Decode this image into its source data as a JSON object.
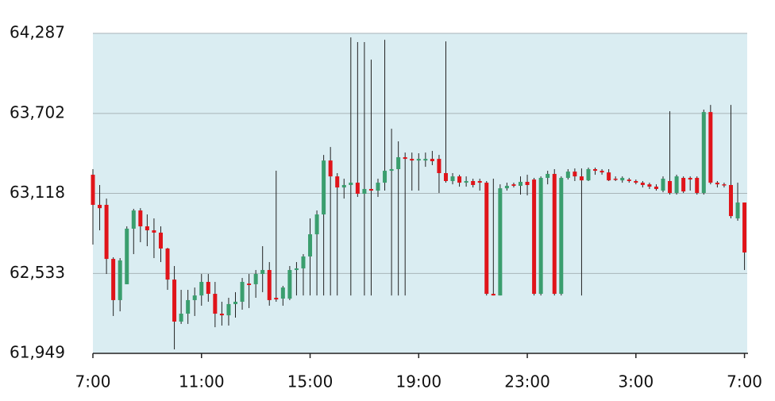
{
  "chart_data": {
    "type": "candlestick",
    "x": [
      0,
      0.25,
      0.5,
      0.75,
      1,
      1.25,
      1.5,
      1.75,
      2,
      2.25,
      2.5,
      2.75,
      3,
      3.25,
      3.5,
      3.75,
      4,
      4.25,
      4.5,
      4.75,
      5,
      5.25,
      5.5,
      5.75,
      6,
      6.25,
      6.5,
      6.75,
      7,
      7.25,
      7.5,
      7.75,
      8,
      8.25,
      8.5,
      8.75,
      9,
      9.25,
      9.5,
      9.75,
      10,
      10.25,
      10.5,
      10.75,
      11,
      11.25,
      11.5,
      11.75,
      12,
      12.25,
      12.5,
      12.75,
      13,
      13.25,
      13.5,
      13.75,
      14,
      14.25,
      14.5,
      14.75,
      15,
      15.25,
      15.5,
      15.75,
      16,
      16.25,
      16.5,
      16.75,
      17,
      17.25,
      17.5,
      17.75,
      18,
      18.25,
      18.5,
      18.75,
      19,
      19.25,
      19.5,
      19.75,
      20,
      20.25,
      20.5,
      20.75,
      21,
      21.25,
      21.5,
      21.75,
      22,
      22.25,
      22.5,
      22.75,
      23,
      23.25,
      23.5,
      23.75,
      24
    ],
    "open": [
      63254,
      63034,
      63034,
      62639,
      62338,
      62454,
      62860,
      62993,
      62877,
      62848,
      62831,
      62715,
      62488,
      62181,
      62239,
      62338,
      62372,
      62471,
      62384,
      62239,
      62227,
      62309,
      62326,
      62459,
      62454,
      62529,
      62558,
      62355,
      62349,
      62349,
      62558,
      62570,
      62657,
      62819,
      62964,
      63358,
      63242,
      63161,
      63179,
      63196,
      63115,
      63150,
      63138,
      63196,
      63283,
      63295,
      63382,
      63370,
      63358,
      63358,
      63370,
      63370,
      63266,
      63208,
      63242,
      63196,
      63208,
      63208,
      63196,
      62384,
      62372,
      63155,
      63184,
      63173,
      63202,
      63219,
      62384,
      63231,
      63260,
      62384,
      63231,
      63277,
      63242,
      63213,
      63295,
      63283,
      63271,
      63225,
      63213,
      63219,
      63208,
      63196,
      63184,
      63167,
      63138,
      63208,
      63121,
      63231,
      63231,
      63231,
      63121,
      63712,
      63196,
      63184,
      63179,
      62935,
      63051
    ],
    "high": [
      63295,
      63179,
      63080,
      62651,
      62645,
      62877,
      63005,
      63010,
      62964,
      62935,
      62877,
      62720,
      62587,
      62413,
      62413,
      62430,
      62529,
      62529,
      62471,
      62326,
      62355,
      62396,
      62500,
      62529,
      62558,
      62732,
      62616,
      63283,
      62442,
      62587,
      62616,
      62674,
      62935,
      62993,
      63399,
      63457,
      63266,
      63225,
      64257,
      64223,
      64223,
      64095,
      63225,
      64240,
      63590,
      63498,
      63416,
      63416,
      63411,
      63416,
      63428,
      63399,
      64228,
      63266,
      63254,
      63242,
      63225,
      63225,
      63208,
      63225,
      63184,
      63196,
      63196,
      63242,
      63254,
      63231,
      63242,
      63283,
      63295,
      63242,
      63295,
      63300,
      63300,
      63306,
      63306,
      63295,
      63295,
      63242,
      63242,
      63231,
      63219,
      63208,
      63196,
      63184,
      63242,
      63718,
      63254,
      63242,
      63242,
      63242,
      63730,
      63764,
      63208,
      63196,
      63764,
      63196,
      63051
    ],
    "low": [
      62744,
      62848,
      62529,
      62222,
      62256,
      62454,
      62674,
      62761,
      62732,
      62645,
      62616,
      62413,
      61978,
      62164,
      62164,
      62222,
      62297,
      62326,
      62140,
      62152,
      62152,
      62210,
      62268,
      62280,
      62355,
      62396,
      62297,
      62326,
      62297,
      62338,
      62372,
      62372,
      62372,
      62372,
      62372,
      62372,
      62372,
      63080,
      62372,
      63092,
      62372,
      62372,
      63092,
      63138,
      62372,
      62372,
      62372,
      63138,
      63138,
      63312,
      63324,
      63121,
      63196,
      63184,
      63167,
      63167,
      63161,
      63138,
      62372,
      62372,
      62372,
      63138,
      63161,
      63109,
      63103,
      62372,
      62372,
      63184,
      62372,
      62372,
      63219,
      63208,
      62372,
      63208,
      63254,
      63254,
      63208,
      63208,
      63196,
      63196,
      63184,
      63161,
      63150,
      63138,
      63126,
      63109,
      63109,
      63121,
      63138,
      63109,
      63109,
      63184,
      63161,
      63161,
      62935,
      62918,
      62558
    ],
    "close": [
      63034,
      63010,
      62639,
      62338,
      62628,
      62860,
      62993,
      62877,
      62848,
      62831,
      62715,
      62488,
      62181,
      62239,
      62338,
      62372,
      62471,
      62384,
      62239,
      62227,
      62309,
      62326,
      62471,
      62448,
      62529,
      62558,
      62338,
      62343,
      62430,
      62558,
      62570,
      62657,
      62819,
      62964,
      63358,
      63242,
      63161,
      63179,
      63196,
      63115,
      63150,
      63138,
      63196,
      63283,
      63295,
      63382,
      63370,
      63358,
      63370,
      63370,
      63353,
      63266,
      63208,
      63242,
      63196,
      63208,
      63179,
      63196,
      62384,
      62372,
      63155,
      63173,
      63173,
      63202,
      63179,
      62384,
      63231,
      63260,
      62384,
      63231,
      63277,
      63242,
      63213,
      63295,
      63283,
      63271,
      63213,
      63219,
      63231,
      63208,
      63196,
      63179,
      63167,
      63150,
      63225,
      63121,
      63242,
      63132,
      63219,
      63121,
      63712,
      63196,
      63184,
      63179,
      62952,
      63051,
      62686
    ],
    "up_color": "#3a9e6e",
    "down_color": "#e0141a",
    "xlim": [
      0,
      24.1
    ],
    "xticks": [
      {
        "value": 0,
        "label": "7:00"
      },
      {
        "value": 4,
        "label": "11:00"
      },
      {
        "value": 8,
        "label": "15:00"
      },
      {
        "value": 12,
        "label": "19:00"
      },
      {
        "value": 16,
        "label": "23:00"
      },
      {
        "value": 20,
        "label": "3:00"
      },
      {
        "value": 24,
        "label": "7:00"
      }
    ],
    "ylim": [
      61949,
      64287
    ],
    "yticks": [
      {
        "value": 61949,
        "label": "61,949"
      },
      {
        "value": 62533,
        "label": "62,533"
      },
      {
        "value": 63118,
        "label": "63,118"
      },
      {
        "value": 63702,
        "label": "63,702"
      },
      {
        "value": 64287,
        "label": "64,287"
      }
    ],
    "grid": true
  }
}
